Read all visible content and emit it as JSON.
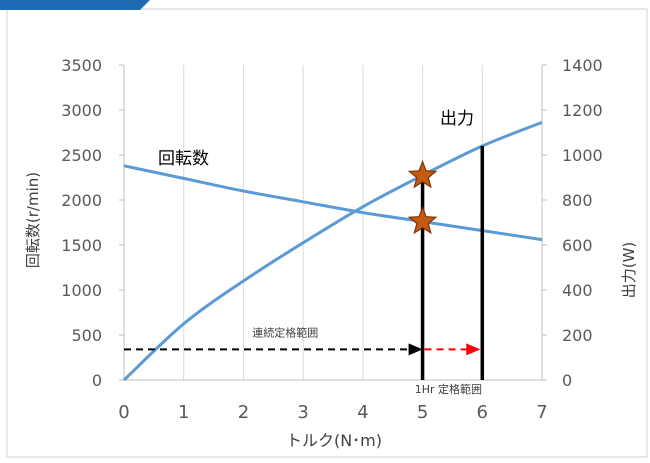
{
  "chart_data": {
    "type": "line",
    "xlabel": "トルク(N･m)",
    "ylabel": "回転数(r/min)",
    "y2label": "出力(W)",
    "xlim": [
      0,
      7
    ],
    "ylim": [
      0,
      3500
    ],
    "y2lim": [
      0,
      1400
    ],
    "x_ticks": [
      "0",
      "1",
      "2",
      "3",
      "4",
      "5",
      "6",
      "7"
    ],
    "y_ticks": [
      "0",
      "500",
      "1000",
      "1500",
      "2000",
      "2500",
      "3000",
      "3500"
    ],
    "y2_ticks": [
      "0",
      "200",
      "400",
      "600",
      "800",
      "1000",
      "1200",
      "1400"
    ],
    "grid": "vertical",
    "series": [
      {
        "name": "回転数",
        "axis": "left",
        "x": [
          0,
          1,
          2,
          3,
          4,
          5,
          6,
          7
        ],
        "values": [
          2380,
          2240,
          2100,
          1980,
          1860,
          1760,
          1660,
          1560
        ]
      },
      {
        "name": "出力",
        "axis": "right",
        "x": [
          0,
          1,
          2,
          3,
          4,
          5,
          6,
          7
        ],
        "values": [
          0,
          250,
          440,
          610,
          770,
          910,
          1040,
          1145
        ]
      }
    ],
    "annotations": {
      "continuous_label": "連続定格範囲",
      "hr_label": "1Hr 定格範囲",
      "continuous_range": [
        0,
        5
      ],
      "hr_range": [
        5,
        6
      ],
      "arrow_level": 340,
      "vertical_markers": [
        {
          "x": 5,
          "top": 2270
        },
        {
          "x": 6,
          "top": 2600
        }
      ],
      "rated_points": [
        {
          "x": 5,
          "y": 2270
        },
        {
          "x": 5,
          "y": 1760
        }
      ]
    },
    "colors": {
      "line": "#5b9bd5",
      "star_fill": "#c55a11",
      "star_stroke": "#7f3306",
      "red_arrow": "#ff0000",
      "grid": "#d9d9d9",
      "corner": "#1f6bb3"
    }
  }
}
